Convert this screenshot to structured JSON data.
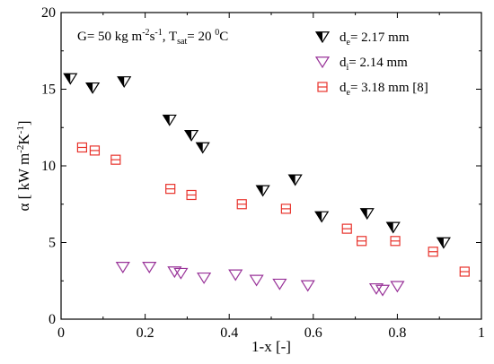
{
  "chart_data": {
    "type": "scatter",
    "xlabel": "1-x [-]",
    "ylabel_parts": {
      "main": "α [ kW m",
      "sup1": "-2",
      "mid": "K",
      "sup2": "-1",
      "end": "]"
    },
    "annotation": {
      "text1": "G= 50 kg m",
      "sup1": "-2",
      "text2": "s",
      "sup2": "-1",
      "text3": ", T",
      "sub1": "sat",
      "text4": "= 20 ",
      "sup3": "0",
      "text5": "C"
    },
    "xlim": [
      0,
      1
    ],
    "ylim": [
      0,
      20
    ],
    "x_ticks": [
      0,
      0.2,
      0.4,
      0.6,
      0.8,
      1
    ],
    "x_tick_labels": [
      "0",
      "0.2",
      "0.4",
      "0.6",
      "0.8",
      "1"
    ],
    "y_ticks": [
      0,
      5,
      10,
      15,
      20
    ],
    "y_tick_labels": [
      "0",
      "5",
      "10",
      "15",
      "20"
    ],
    "grid": false,
    "legend_position": "top-right",
    "colors": {
      "series1": "#000000",
      "series2": "#993399",
      "series3": "#e8332c"
    },
    "series": [
      {
        "legend_main": "d",
        "legend_sub": "e",
        "legend_rest": "= 2.17 mm",
        "marker": "down-triangle-half-filled",
        "points": [
          [
            0.022,
            15.7
          ],
          [
            0.075,
            15.1
          ],
          [
            0.15,
            15.5
          ],
          [
            0.258,
            13.0
          ],
          [
            0.31,
            12.0
          ],
          [
            0.337,
            11.2
          ],
          [
            0.48,
            8.4
          ],
          [
            0.557,
            9.1
          ],
          [
            0.62,
            6.7
          ],
          [
            0.728,
            6.9
          ],
          [
            0.79,
            6.0
          ],
          [
            0.91,
            5.0
          ]
        ]
      },
      {
        "legend_main": "d",
        "legend_sub": "i",
        "legend_rest": "=  2.14 mm",
        "marker": "down-triangle-open",
        "points": [
          [
            0.147,
            3.4
          ],
          [
            0.21,
            3.4
          ],
          [
            0.27,
            3.1
          ],
          [
            0.285,
            3.0
          ],
          [
            0.34,
            2.7
          ],
          [
            0.415,
            2.9
          ],
          [
            0.465,
            2.55
          ],
          [
            0.52,
            2.3
          ],
          [
            0.587,
            2.2
          ],
          [
            0.75,
            2.0
          ],
          [
            0.765,
            1.9
          ],
          [
            0.8,
            2.15
          ]
        ]
      },
      {
        "legend_main": "d",
        "legend_sub": "e",
        "legend_rest": "= 3.18 mm [8]",
        "marker": "square-open-crossbar",
        "points": [
          [
            0.05,
            11.2
          ],
          [
            0.08,
            11.0
          ],
          [
            0.13,
            10.4
          ],
          [
            0.26,
            8.5
          ],
          [
            0.31,
            8.1
          ],
          [
            0.43,
            7.5
          ],
          [
            0.535,
            7.2
          ],
          [
            0.68,
            5.9
          ],
          [
            0.715,
            5.1
          ],
          [
            0.795,
            5.1
          ],
          [
            0.885,
            4.4
          ],
          [
            0.96,
            3.1
          ]
        ]
      }
    ]
  }
}
